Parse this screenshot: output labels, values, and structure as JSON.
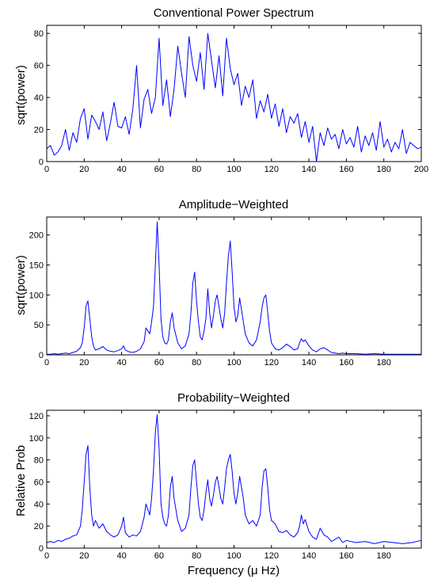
{
  "figure": {
    "xlabel": "Frequency (μ Hz)"
  },
  "chart_data": [
    {
      "type": "line",
      "title": "Conventional Power Spectrum",
      "xlabel": "",
      "ylabel": "sqrt(power)",
      "xlim": [
        0,
        200
      ],
      "ylim": [
        0,
        85
      ],
      "xticks": [
        0,
        20,
        40,
        60,
        80,
        100,
        120,
        140,
        160,
        180,
        200
      ],
      "yticks": [
        0,
        20,
        40,
        60,
        80
      ],
      "color": "#0000ff",
      "series": [
        {
          "x": [
            0,
            2,
            4,
            6,
            8,
            10,
            12,
            14,
            16,
            18,
            20,
            22,
            24,
            26,
            28,
            30,
            32,
            34,
            36,
            38,
            40,
            42,
            44,
            46,
            48,
            50,
            52,
            54,
            56,
            58,
            60,
            62,
            64,
            66,
            68,
            70,
            72,
            74,
            76,
            78,
            80,
            82,
            84,
            86,
            88,
            90,
            92,
            94,
            96,
            98,
            100,
            102,
            104,
            106,
            108,
            110,
            112,
            114,
            116,
            118,
            120,
            122,
            124,
            126,
            128,
            130,
            132,
            134,
            136,
            138,
            140,
            142,
            144,
            146,
            148,
            150,
            152,
            154,
            156,
            158,
            160,
            162,
            164,
            166,
            168,
            170,
            172,
            174,
            176,
            178,
            180,
            182,
            184,
            186,
            188,
            190,
            192,
            194,
            196,
            198,
            200
          ],
          "values": [
            8,
            10,
            4,
            6,
            10,
            20,
            7,
            18,
            12,
            27,
            33,
            14,
            29,
            25,
            20,
            31,
            13,
            24,
            37,
            22,
            21,
            28,
            17,
            33,
            60,
            21,
            39,
            45,
            30,
            40,
            77,
            35,
            51,
            28,
            45,
            72,
            55,
            40,
            78,
            60,
            50,
            68,
            45,
            80,
            63,
            46,
            66,
            41,
            77,
            58,
            48,
            55,
            35,
            47,
            40,
            51,
            27,
            38,
            31,
            42,
            27,
            36,
            22,
            33,
            18,
            28,
            24,
            30,
            15,
            25,
            12,
            22,
            0,
            18,
            10,
            21,
            14,
            17,
            8,
            20,
            11,
            15,
            9,
            22,
            6,
            16,
            10,
            18,
            7,
            25,
            9,
            14,
            6,
            12,
            8,
            20,
            5,
            12,
            10,
            8,
            9
          ]
        }
      ]
    },
    {
      "type": "line",
      "title": "Amplitude−Weighted",
      "xlabel": "",
      "ylabel": "sqrt(power)",
      "xlim": [
        0,
        200
      ],
      "ylim": [
        0,
        230
      ],
      "xticks": [
        0,
        20,
        40,
        60,
        80,
        100,
        120,
        140,
        160,
        180
      ],
      "yticks": [
        0,
        50,
        100,
        150,
        200
      ],
      "color": "#0000ff",
      "series": [
        {
          "x": [
            0,
            2,
            4,
            6,
            8,
            10,
            12,
            14,
            16,
            18,
            19,
            20,
            21,
            22,
            23,
            24,
            25,
            26,
            28,
            30,
            32,
            34,
            36,
            38,
            40,
            41,
            42,
            44,
            46,
            48,
            50,
            52,
            53,
            54,
            55,
            56,
            57,
            58,
            59,
            60,
            61,
            62,
            63,
            64,
            65,
            66,
            67,
            68,
            70,
            72,
            74,
            76,
            77,
            78,
            79,
            80,
            81,
            82,
            83,
            84,
            85,
            86,
            87,
            88,
            89,
            90,
            91,
            92,
            93,
            94,
            95,
            96,
            97,
            98,
            99,
            100,
            101,
            102,
            103,
            104,
            105,
            106,
            108,
            110,
            112,
            114,
            115,
            116,
            117,
            118,
            119,
            120,
            122,
            124,
            126,
            128,
            130,
            132,
            134,
            135,
            136,
            137,
            138,
            140,
            142,
            144,
            146,
            148,
            150,
            152,
            154,
            156,
            158,
            160,
            165,
            170,
            175,
            180,
            185,
            190,
            195,
            200
          ],
          "values": [
            1,
            1,
            2,
            1,
            2,
            3,
            2,
            4,
            6,
            12,
            20,
            45,
            82,
            90,
            60,
            30,
            14,
            8,
            10,
            14,
            8,
            6,
            5,
            7,
            10,
            15,
            8,
            5,
            4,
            6,
            10,
            22,
            45,
            40,
            35,
            55,
            80,
            150,
            222,
            150,
            60,
            30,
            20,
            18,
            25,
            55,
            70,
            45,
            20,
            10,
            15,
            35,
            70,
            120,
            138,
            90,
            55,
            30,
            25,
            40,
            60,
            110,
            70,
            45,
            65,
            90,
            100,
            80,
            60,
            45,
            70,
            120,
            165,
            190,
            140,
            80,
            55,
            65,
            95,
            75,
            55,
            35,
            20,
            15,
            25,
            55,
            80,
            95,
            100,
            70,
            40,
            20,
            10,
            8,
            12,
            18,
            14,
            8,
            10,
            20,
            27,
            22,
            25,
            15,
            8,
            5,
            10,
            12,
            8,
            4,
            3,
            2,
            3,
            2,
            2,
            1,
            2,
            1,
            1,
            1,
            1,
            1
          ]
        }
      ]
    },
    {
      "type": "line",
      "title": "Probability−Weighted",
      "xlabel": "Frequency (μ Hz)",
      "ylabel": "Relative Prob",
      "xlim": [
        0,
        200
      ],
      "ylim": [
        0,
        125
      ],
      "xticks": [
        0,
        20,
        40,
        60,
        80,
        100,
        120,
        140,
        160,
        180
      ],
      "yticks": [
        0,
        20,
        40,
        60,
        80,
        100,
        120
      ],
      "color": "#0000ff",
      "series": [
        {
          "x": [
            0,
            2,
            4,
            6,
            8,
            10,
            12,
            14,
            16,
            18,
            19,
            20,
            21,
            22,
            23,
            24,
            25,
            26,
            28,
            30,
            32,
            34,
            36,
            38,
            40,
            41,
            42,
            44,
            46,
            48,
            50,
            52,
            53,
            54,
            55,
            56,
            57,
            58,
            59,
            60,
            61,
            62,
            63,
            64,
            65,
            66,
            67,
            68,
            70,
            72,
            74,
            76,
            77,
            78,
            79,
            80,
            81,
            82,
            83,
            84,
            85,
            86,
            87,
            88,
            89,
            90,
            91,
            92,
            93,
            94,
            95,
            96,
            97,
            98,
            99,
            100,
            101,
            102,
            103,
            104,
            105,
            106,
            108,
            110,
            112,
            114,
            115,
            116,
            117,
            118,
            119,
            120,
            122,
            124,
            126,
            128,
            130,
            132,
            134,
            135,
            136,
            137,
            138,
            140,
            142,
            144,
            146,
            148,
            150,
            152,
            154,
            156,
            158,
            160,
            165,
            170,
            175,
            180,
            185,
            190,
            195,
            200
          ],
          "values": [
            5,
            6,
            5,
            7,
            6,
            8,
            9,
            11,
            12,
            20,
            35,
            60,
            85,
            93,
            55,
            30,
            20,
            25,
            18,
            22,
            15,
            12,
            10,
            12,
            20,
            28,
            14,
            10,
            12,
            11,
            15,
            28,
            40,
            35,
            30,
            45,
            70,
            105,
            121,
            90,
            40,
            28,
            22,
            20,
            30,
            55,
            65,
            45,
            25,
            15,
            18,
            30,
            55,
            75,
            80,
            60,
            40,
            28,
            25,
            35,
            50,
            62,
            45,
            38,
            48,
            60,
            65,
            55,
            45,
            40,
            55,
            72,
            80,
            85,
            70,
            50,
            40,
            50,
            65,
            55,
            45,
            30,
            22,
            25,
            20,
            30,
            55,
            70,
            72,
            55,
            35,
            25,
            22,
            15,
            14,
            16,
            12,
            10,
            14,
            20,
            30,
            22,
            26,
            15,
            10,
            8,
            18,
            12,
            10,
            6,
            8,
            10,
            5,
            7,
            5,
            6,
            4,
            6,
            5,
            4,
            5,
            7
          ]
        }
      ]
    }
  ]
}
